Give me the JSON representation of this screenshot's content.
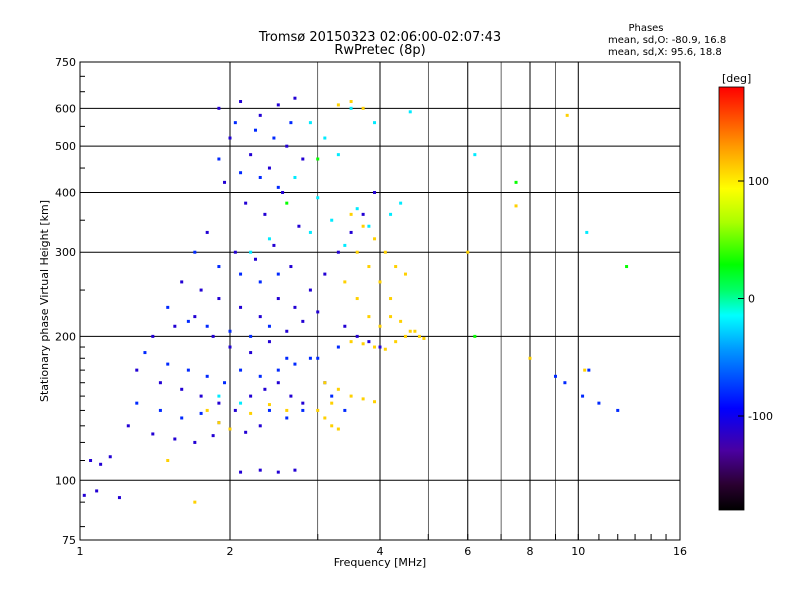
{
  "header": {
    "title_line1": "Tromsø 20150323 02:06:00-02:07:43",
    "title_line2": "RwPretec (8p)"
  },
  "phases_box": {
    "heading": "Phases",
    "line1": "mean, sd,O: -80.9, 16.8",
    "line2": "mean, sd,X:  95.6, 18.8"
  },
  "colorbar": {
    "unit": "[deg]",
    "ticks": [
      100,
      0,
      -100
    ],
    "range": [
      -180,
      180
    ]
  },
  "chart_data": {
    "type": "scatter",
    "title": "Tromsø 20150323 02:06:00-02:07:43",
    "subtitle": "RwPretec (8p)",
    "xlabel": "Frequency [MHz]",
    "ylabel": "Stationary phase Virtual Height [km]",
    "xscale": "log",
    "yscale": "log",
    "xlim": [
      1,
      16
    ],
    "ylim": [
      75,
      750
    ],
    "x_ticks": [
      1,
      2,
      4,
      6,
      8,
      10,
      16
    ],
    "x_gridlines": [
      2,
      4,
      6,
      8,
      10
    ],
    "minor_x_gridlines": [
      3,
      5,
      7,
      9
    ],
    "y_ticks": [
      75,
      100,
      200,
      300,
      400,
      500,
      600,
      750
    ],
    "grid": true,
    "color_encoding": "phase (deg)",
    "series": [
      {
        "phase": -110,
        "points": [
          [
            1.9,
            600
          ],
          [
            2.1,
            620
          ],
          [
            2.3,
            580
          ],
          [
            2.5,
            610
          ],
          [
            2.7,
            630
          ],
          [
            2.0,
            520
          ],
          [
            2.2,
            480
          ],
          [
            2.4,
            450
          ],
          [
            2.6,
            500
          ],
          [
            2.8,
            470
          ],
          [
            1.95,
            420
          ],
          [
            2.15,
            380
          ],
          [
            2.35,
            360
          ],
          [
            2.55,
            400
          ],
          [
            2.75,
            340
          ],
          [
            1.8,
            330
          ],
          [
            2.05,
            300
          ],
          [
            2.25,
            290
          ],
          [
            2.45,
            310
          ],
          [
            2.65,
            280
          ],
          [
            1.6,
            260
          ],
          [
            1.75,
            250
          ],
          [
            1.9,
            240
          ],
          [
            2.1,
            230
          ],
          [
            2.3,
            220
          ],
          [
            2.5,
            240
          ],
          [
            2.7,
            230
          ],
          [
            2.9,
            250
          ],
          [
            3.1,
            270
          ],
          [
            3.3,
            300
          ],
          [
            3.5,
            330
          ],
          [
            3.7,
            360
          ],
          [
            3.9,
            400
          ],
          [
            1.4,
            200
          ],
          [
            1.55,
            210
          ],
          [
            1.7,
            220
          ],
          [
            1.85,
            200
          ],
          [
            2.0,
            190
          ],
          [
            2.2,
            185
          ],
          [
            2.4,
            195
          ],
          [
            2.6,
            205
          ],
          [
            2.8,
            215
          ],
          [
            3.0,
            225
          ],
          [
            1.3,
            170
          ],
          [
            1.45,
            160
          ],
          [
            1.6,
            155
          ],
          [
            1.75,
            150
          ],
          [
            1.9,
            145
          ],
          [
            2.05,
            140
          ],
          [
            2.2,
            150
          ],
          [
            2.35,
            155
          ],
          [
            2.5,
            160
          ],
          [
            2.65,
            150
          ],
          [
            2.8,
            145
          ],
          [
            1.25,
            130
          ],
          [
            1.4,
            125
          ],
          [
            1.55,
            122
          ],
          [
            1.7,
            120
          ],
          [
            1.85,
            124
          ],
          [
            2.0,
            128
          ],
          [
            2.15,
            126
          ],
          [
            2.3,
            130
          ],
          [
            1.05,
            110
          ],
          [
            1.1,
            108
          ],
          [
            1.15,
            112
          ],
          [
            2.1,
            104
          ],
          [
            2.3,
            105
          ],
          [
            2.5,
            104
          ],
          [
            2.7,
            105
          ],
          [
            3.6,
            200
          ],
          [
            3.8,
            195
          ],
          [
            4.0,
            190
          ],
          [
            3.4,
            210
          ],
          [
            1.02,
            93
          ],
          [
            1.08,
            95
          ],
          [
            1.2,
            92
          ]
        ]
      },
      {
        "phase": -80,
        "points": [
          [
            2.05,
            560
          ],
          [
            2.25,
            540
          ],
          [
            2.45,
            520
          ],
          [
            2.65,
            560
          ],
          [
            1.9,
            470
          ],
          [
            2.1,
            440
          ],
          [
            2.3,
            430
          ],
          [
            2.5,
            410
          ],
          [
            1.7,
            300
          ],
          [
            1.9,
            280
          ],
          [
            2.1,
            270
          ],
          [
            2.3,
            260
          ],
          [
            2.5,
            270
          ],
          [
            1.5,
            230
          ],
          [
            1.65,
            215
          ],
          [
            1.8,
            210
          ],
          [
            2.0,
            205
          ],
          [
            2.2,
            200
          ],
          [
            2.4,
            210
          ],
          [
            2.6,
            180
          ],
          [
            1.35,
            185
          ],
          [
            1.5,
            175
          ],
          [
            1.65,
            170
          ],
          [
            1.8,
            165
          ],
          [
            1.95,
            160
          ],
          [
            2.1,
            170
          ],
          [
            2.3,
            165
          ],
          [
            2.5,
            170
          ],
          [
            2.7,
            175
          ],
          [
            2.9,
            180
          ],
          [
            3.1,
            160
          ],
          [
            1.3,
            145
          ],
          [
            1.45,
            140
          ],
          [
            1.6,
            135
          ],
          [
            1.75,
            138
          ],
          [
            1.9,
            132
          ],
          [
            2.4,
            140
          ],
          [
            2.6,
            135
          ],
          [
            2.8,
            140
          ],
          [
            3.2,
            150
          ],
          [
            3.4,
            140
          ],
          [
            9.0,
            165
          ],
          [
            9.4,
            160
          ],
          [
            10.5,
            170
          ],
          [
            10.2,
            150
          ],
          [
            11.0,
            145
          ],
          [
            12.0,
            140
          ],
          [
            3.0,
            180
          ],
          [
            3.3,
            190
          ]
        ]
      },
      {
        "phase": -20,
        "points": [
          [
            2.9,
            560
          ],
          [
            3.1,
            520
          ],
          [
            3.3,
            480
          ],
          [
            2.7,
            430
          ],
          [
            3.0,
            390
          ],
          [
            3.2,
            350
          ],
          [
            2.9,
            330
          ],
          [
            3.4,
            310
          ],
          [
            3.6,
            370
          ],
          [
            3.8,
            340
          ],
          [
            4.2,
            360
          ],
          [
            4.4,
            380
          ],
          [
            2.2,
            300
          ],
          [
            2.4,
            320
          ],
          [
            1.9,
            150
          ],
          [
            2.1,
            145
          ],
          [
            3.5,
            600
          ],
          [
            3.9,
            560
          ],
          [
            4.6,
            590
          ],
          [
            6.2,
            480
          ],
          [
            10.4,
            330
          ]
        ]
      },
      {
        "phase": 110,
        "points": [
          [
            3.3,
            610
          ],
          [
            3.5,
            620
          ],
          [
            3.7,
            600
          ],
          [
            3.5,
            360
          ],
          [
            3.7,
            340
          ],
          [
            3.9,
            320
          ],
          [
            4.1,
            300
          ],
          [
            4.3,
            280
          ],
          [
            4.5,
            270
          ],
          [
            3.6,
            300
          ],
          [
            3.8,
            280
          ],
          [
            4.0,
            260
          ],
          [
            4.2,
            240
          ],
          [
            3.4,
            260
          ],
          [
            3.6,
            240
          ],
          [
            3.8,
            220
          ],
          [
            4.0,
            210
          ],
          [
            4.2,
            220
          ],
          [
            4.4,
            215
          ],
          [
            4.6,
            205
          ],
          [
            4.8,
            200
          ],
          [
            3.5,
            195
          ],
          [
            3.7,
            193
          ],
          [
            3.9,
            190
          ],
          [
            4.1,
            188
          ],
          [
            4.3,
            195
          ],
          [
            4.5,
            200
          ],
          [
            4.7,
            205
          ],
          [
            4.9,
            198
          ],
          [
            3.1,
            160
          ],
          [
            3.3,
            155
          ],
          [
            3.5,
            150
          ],
          [
            3.7,
            148
          ],
          [
            3.9,
            146
          ],
          [
            3.2,
            145
          ],
          [
            3.0,
            140
          ],
          [
            3.1,
            135
          ],
          [
            3.2,
            130
          ],
          [
            3.3,
            128
          ],
          [
            1.8,
            140
          ],
          [
            1.9,
            132
          ],
          [
            2.0,
            128
          ],
          [
            2.2,
            138
          ],
          [
            2.4,
            144
          ],
          [
            2.6,
            140
          ],
          [
            1.5,
            110
          ],
          [
            1.7,
            90
          ],
          [
            8.0,
            180
          ],
          [
            9.5,
            580
          ],
          [
            7.5,
            375
          ],
          [
            6.0,
            300
          ],
          [
            10.3,
            170
          ]
        ]
      },
      {
        "phase": 30,
        "points": [
          [
            7.5,
            420
          ],
          [
            12.5,
            280
          ],
          [
            6.2,
            200
          ],
          [
            3.0,
            470
          ],
          [
            2.6,
            380
          ]
        ]
      }
    ]
  }
}
